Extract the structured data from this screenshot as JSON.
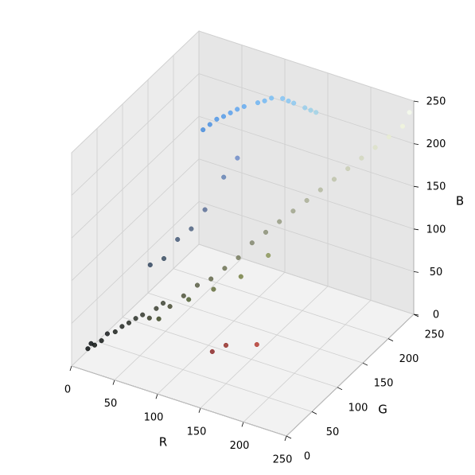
{
  "chart_data": {
    "type": "scatter3d",
    "x_label": "R",
    "y_label": "G",
    "z_label": "B",
    "xlim": [
      0,
      250
    ],
    "ylim": [
      0,
      250
    ],
    "zlim": [
      0,
      250
    ],
    "xticks": [
      0,
      50,
      100,
      150,
      200,
      250
    ],
    "yticks": [
      0,
      50,
      100,
      150,
      200,
      250
    ],
    "zticks": [
      0,
      50,
      100,
      150,
      200,
      250
    ],
    "grid": true,
    "point_color": "rgb",
    "x": [
      10,
      15,
      20,
      25,
      12,
      30,
      35,
      40,
      45,
      50,
      55,
      60,
      65,
      70,
      80,
      90,
      100,
      110,
      120,
      130,
      140,
      150,
      160,
      170,
      180,
      190,
      200,
      210,
      220,
      230,
      240,
      245,
      100,
      120,
      140,
      80,
      60,
      60,
      70,
      80,
      50,
      90,
      100,
      110,
      70,
      75,
      80,
      90,
      100,
      110,
      120,
      130,
      140,
      150,
      160,
      85,
      95,
      115,
      135,
      155,
      140,
      180,
      150
    ],
    "y": [
      15,
      20,
      25,
      28,
      18,
      35,
      40,
      45,
      50,
      55,
      60,
      65,
      70,
      75,
      85,
      95,
      105,
      115,
      125,
      135,
      145,
      155,
      165,
      175,
      185,
      195,
      205,
      215,
      225,
      235,
      245,
      250,
      110,
      130,
      150,
      95,
      70,
      80,
      90,
      100,
      70,
      110,
      130,
      140,
      140,
      145,
      150,
      160,
      170,
      180,
      190,
      195,
      200,
      205,
      210,
      155,
      165,
      185,
      198,
      208,
      40,
      60,
      50
    ],
    "z": [
      15,
      18,
      22,
      30,
      20,
      30,
      35,
      38,
      42,
      45,
      40,
      50,
      55,
      50,
      60,
      70,
      75,
      85,
      95,
      110,
      120,
      130,
      140,
      150,
      160,
      170,
      180,
      190,
      200,
      210,
      220,
      235,
      60,
      70,
      90,
      50,
      35,
      100,
      120,
      130,
      95,
      150,
      180,
      200,
      220,
      225,
      230,
      235,
      240,
      242,
      245,
      245,
      240,
      235,
      230,
      232,
      238,
      243,
      242,
      232,
      40,
      50,
      45
    ]
  }
}
